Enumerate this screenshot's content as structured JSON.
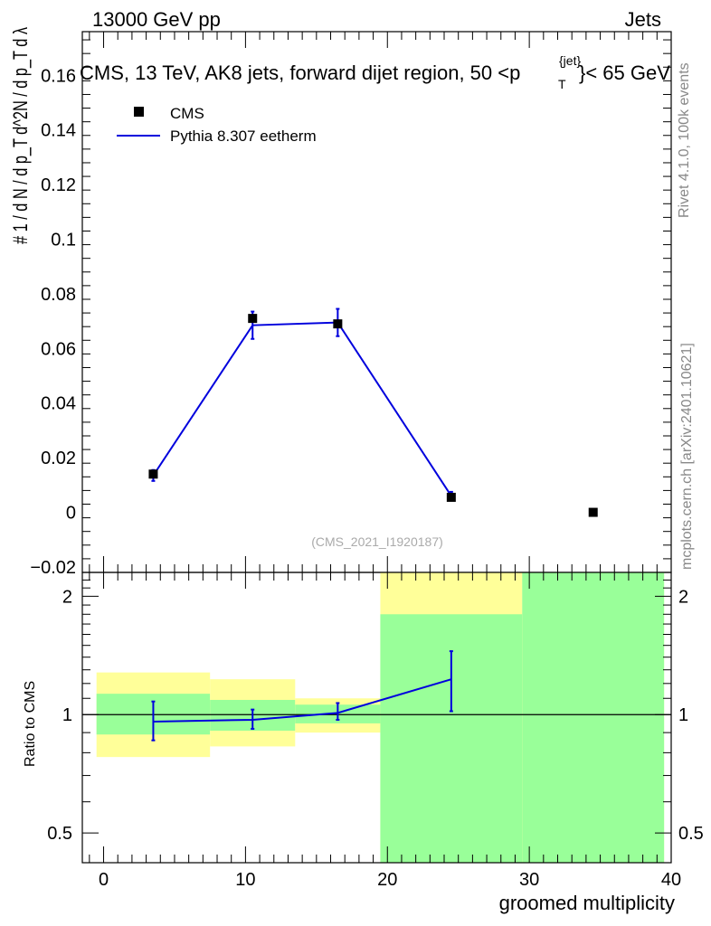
{
  "header": {
    "left": "13000 GeV pp",
    "right": "Jets",
    "title": "CMS, 13 TeV, AK8 jets, forward dijet region, 50 <p",
    "title_sup": "{jet}",
    "title_sub": "T",
    "title_end": "}< 65 GeV"
  },
  "side": {
    "rivet": "Rivet 4.1.0,  100k events",
    "mcplots": "mcplots.cern.ch [arXiv:2401.10621]"
  },
  "watermark": "(CMS_2021_I1920187)",
  "legend": {
    "data_label": "CMS",
    "mc_label": "Pythia 8.307 eetherm"
  },
  "ylabel_main": "# 1 / d N / d p_T d^2N / d p_T d λ",
  "ylabel_ratio": "Ratio to CMS",
  "xlabel": "groomed multiplicity",
  "colors": {
    "data": "#000000",
    "mc": "#0000dd",
    "band_inner": "#99ff99",
    "band_outer": "#ffff99"
  },
  "chart_data": [
    {
      "type": "scatter",
      "name": "main",
      "xlim": [
        -1.5,
        40
      ],
      "ylim": [
        -0.022,
        0.176
      ],
      "yticks": [
        -0.02,
        0,
        0.02,
        0.04,
        0.06,
        0.08,
        0.1,
        0.12,
        0.14,
        0.16
      ],
      "ytick_labels": [
        "−0.02",
        "0",
        "0.02",
        "0.04",
        "0.06",
        "0.08",
        "0.1",
        "0.12",
        "0.14",
        "0.16"
      ],
      "data_points": [
        {
          "x": 3.5,
          "y": 0.014,
          "err": 0.002
        },
        {
          "x": 10.5,
          "y": 0.071,
          "err": 0.0015
        },
        {
          "x": 16.5,
          "y": 0.069,
          "err": 0.0015
        },
        {
          "x": 24.5,
          "y": 0.0055,
          "err": 0.001
        },
        {
          "x": 34.5,
          "y": 0.0,
          "err": 0.0
        }
      ],
      "mc_points": [
        {
          "x": 3.5,
          "y": 0.0135,
          "err": 0.002
        },
        {
          "x": 10.5,
          "y": 0.0685,
          "err": 0.005
        },
        {
          "x": 16.5,
          "y": 0.0695,
          "err": 0.005
        },
        {
          "x": 24.5,
          "y": 0.006,
          "err": 0.0015
        }
      ]
    },
    {
      "type": "line",
      "name": "ratio",
      "xlim": [
        -1.5,
        40
      ],
      "ylim": [
        0.42,
        2.3
      ],
      "yscale": "log",
      "yticks": [
        0.5,
        1,
        2
      ],
      "ytick_labels": [
        "0.5",
        "1",
        "2"
      ],
      "xticks": [
        0,
        10,
        20,
        30,
        40
      ],
      "xtick_labels": [
        "0",
        "10",
        "20",
        "30",
        "40"
      ],
      "bands": [
        {
          "x0": -0.5,
          "x1": 7.5,
          "inner": [
            0.89,
            1.13
          ],
          "outer": [
            0.78,
            1.28
          ]
        },
        {
          "x0": 7.5,
          "x1": 13.5,
          "inner": [
            0.91,
            1.09
          ],
          "outer": [
            0.83,
            1.23
          ]
        },
        {
          "x0": 13.5,
          "x1": 19.5,
          "inner": [
            0.95,
            1.06
          ],
          "outer": [
            0.9,
            1.1
          ]
        },
        {
          "x0": 19.5,
          "x1": 29.5,
          "inner": [
            0.3,
            1.8
          ],
          "outer": [
            0.3,
            3.0
          ]
        },
        {
          "x0": 29.5,
          "x1": 39.5,
          "inner": [
            0.3,
            3.0
          ],
          "outer": [
            0.3,
            3.0
          ]
        }
      ],
      "mc_points": [
        {
          "x": 3.5,
          "y": 0.96,
          "lo": 0.86,
          "hi": 1.08
        },
        {
          "x": 10.5,
          "y": 0.97,
          "lo": 0.92,
          "hi": 1.03
        },
        {
          "x": 16.5,
          "y": 1.01,
          "lo": 0.97,
          "hi": 1.07
        },
        {
          "x": 24.5,
          "y": 1.23,
          "lo": 1.02,
          "hi": 1.45
        }
      ]
    }
  ]
}
